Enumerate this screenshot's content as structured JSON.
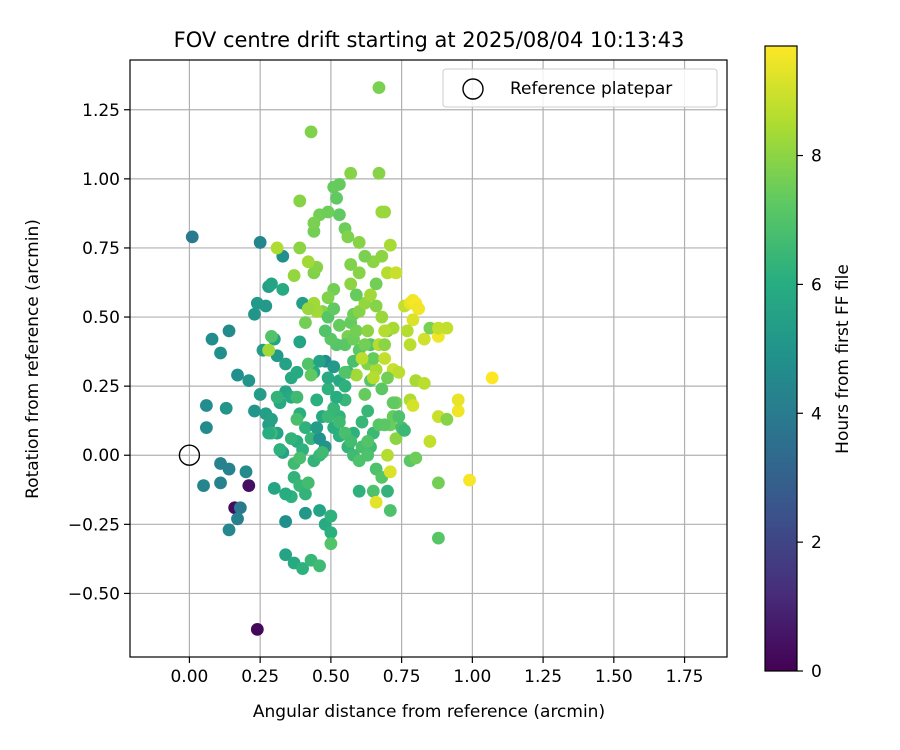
{
  "chart_data": {
    "type": "scatter",
    "title": "FOV centre drift starting at 2025/08/04 10:13:43",
    "xlabel": "Angular distance from reference (arcmin)",
    "ylabel": "Rotation from reference (arcmin)",
    "xlim": [
      -0.21,
      1.9
    ],
    "ylim": [
      -0.73,
      1.43
    ],
    "xticks": [
      "0.00",
      "0.25",
      "0.50",
      "0.75",
      "1.00",
      "1.25",
      "1.50",
      "1.75"
    ],
    "yticks": [
      "−0.50",
      "−0.25",
      "0.00",
      "0.25",
      "0.50",
      "0.75",
      "1.00",
      "1.25"
    ],
    "grid": true,
    "legend": {
      "position": "top-right",
      "entries": [
        {
          "label": "Reference platepar",
          "marker": "open-circle"
        }
      ]
    },
    "reference_point": {
      "x": 0.0,
      "y": 0.0
    },
    "colorbar": {
      "label": "Hours from first FF file",
      "colormap": "viridis",
      "min": 0,
      "max": 9.7,
      "ticks": [
        "0",
        "2",
        "4",
        "6",
        "8"
      ]
    },
    "point_columns": [
      "x",
      "y",
      "hours"
    ],
    "points": [
      [
        0.24,
        -0.63,
        0.2
      ],
      [
        0.16,
        -0.19,
        0.3
      ],
      [
        0.21,
        -0.11,
        0.4
      ],
      [
        0.18,
        -0.19,
        3.9
      ],
      [
        0.17,
        -0.23,
        4.2
      ],
      [
        0.14,
        -0.27,
        4.5
      ],
      [
        0.01,
        0.79,
        3.9
      ],
      [
        0.25,
        0.77,
        4.4
      ],
      [
        0.14,
        0.45,
        4.6
      ],
      [
        0.08,
        0.42,
        4.7
      ],
      [
        0.11,
        0.37,
        4.8
      ],
      [
        0.06,
        0.18,
        4.7
      ],
      [
        0.13,
        0.17,
        5.0
      ],
      [
        0.06,
        0.1,
        4.6
      ],
      [
        0.11,
        -0.03,
        4.3
      ],
      [
        0.14,
        -0.05,
        4.3
      ],
      [
        0.05,
        -0.11,
        4.4
      ],
      [
        0.11,
        -0.1,
        4.3
      ],
      [
        0.2,
        -0.06,
        4.6
      ],
      [
        0.17,
        0.29,
        4.8
      ],
      [
        0.21,
        0.27,
        5.0
      ],
      [
        0.23,
        0.51,
        5.0
      ],
      [
        0.24,
        0.55,
        5.2
      ],
      [
        0.27,
        0.54,
        5.2
      ],
      [
        0.28,
        0.61,
        5.4
      ],
      [
        0.29,
        0.62,
        5.6
      ],
      [
        0.33,
        0.6,
        5.9
      ],
      [
        0.33,
        0.72,
        4.8
      ],
      [
        0.3,
        0.42,
        5.6
      ],
      [
        0.26,
        0.38,
        5.3
      ],
      [
        0.31,
        0.36,
        5.2
      ],
      [
        0.34,
        0.33,
        5.5
      ],
      [
        0.36,
        0.28,
        5.8
      ],
      [
        0.38,
        0.3,
        5.9
      ],
      [
        0.39,
        0.41,
        5.6
      ],
      [
        0.4,
        0.55,
        5.4
      ],
      [
        0.23,
        0.16,
        5.0
      ],
      [
        0.25,
        0.22,
        5.3
      ],
      [
        0.27,
        0.15,
        5.4
      ],
      [
        0.28,
        0.11,
        5.4
      ],
      [
        0.29,
        0.13,
        5.5
      ],
      [
        0.31,
        0.08,
        5.6
      ],
      [
        0.32,
        0.19,
        5.8
      ],
      [
        0.34,
        0.23,
        5.7
      ],
      [
        0.36,
        0.21,
        5.9
      ],
      [
        0.39,
        0.15,
        6.1
      ],
      [
        0.41,
        0.1,
        6.2
      ],
      [
        0.43,
        0.06,
        6.4
      ],
      [
        0.33,
        0.01,
        5.5
      ],
      [
        0.32,
        0.02,
        5.7
      ],
      [
        0.38,
        0.05,
        6.0
      ],
      [
        0.4,
        0.02,
        6.2
      ],
      [
        0.44,
        -0.02,
        6.3
      ],
      [
        0.46,
        0.0,
        6.4
      ],
      [
        0.37,
        -0.08,
        6.3
      ],
      [
        0.39,
        -0.11,
        6.4
      ],
      [
        0.41,
        -0.14,
        6.3
      ],
      [
        0.36,
        -0.15,
        6.2
      ],
      [
        0.34,
        -0.14,
        6.0
      ],
      [
        0.3,
        -0.12,
        5.7
      ],
      [
        0.34,
        -0.24,
        4.8
      ],
      [
        0.41,
        -0.21,
        5.1
      ],
      [
        0.46,
        -0.2,
        5.6
      ],
      [
        0.48,
        -0.25,
        5.9
      ],
      [
        0.5,
        -0.22,
        6.2
      ],
      [
        0.5,
        -0.28,
        6.1
      ],
      [
        0.34,
        -0.36,
        5.6
      ],
      [
        0.37,
        -0.39,
        5.9
      ],
      [
        0.4,
        -0.41,
        6.2
      ],
      [
        0.43,
        -0.38,
        6.4
      ],
      [
        0.46,
        -0.4,
        6.6
      ],
      [
        0.5,
        -0.32,
        7.0
      ],
      [
        0.46,
        0.06,
        4.9
      ],
      [
        0.48,
        0.03,
        5.0
      ],
      [
        0.45,
        0.1,
        5.3
      ],
      [
        0.47,
        0.14,
        5.8
      ],
      [
        0.45,
        0.2,
        6.1
      ],
      [
        0.49,
        0.24,
        6.2
      ],
      [
        0.44,
        0.3,
        5.8
      ],
      [
        0.48,
        0.34,
        4.7
      ],
      [
        0.51,
        0.32,
        5.2
      ],
      [
        0.53,
        0.27,
        5.8
      ],
      [
        0.55,
        0.25,
        6.2
      ],
      [
        0.55,
        0.2,
        6.4
      ],
      [
        0.53,
        0.14,
        6.3
      ],
      [
        0.51,
        0.1,
        6.0
      ],
      [
        0.53,
        0.07,
        6.1
      ],
      [
        0.56,
        0.03,
        6.3
      ],
      [
        0.58,
        0.0,
        6.6
      ],
      [
        0.6,
        -0.02,
        6.9
      ],
      [
        0.58,
        0.08,
        6.2
      ],
      [
        0.61,
        0.12,
        6.4
      ],
      [
        0.63,
        0.16,
        6.4
      ],
      [
        0.65,
        0.08,
        6.5
      ],
      [
        0.64,
        0.03,
        6.6
      ],
      [
        0.66,
        -0.05,
        6.9
      ],
      [
        0.68,
        -0.08,
        7.1
      ],
      [
        0.7,
        -0.13,
        6.3
      ],
      [
        0.65,
        -0.13,
        6.9
      ],
      [
        0.6,
        -0.13,
        6.2
      ],
      [
        0.71,
        -0.2,
        6.9
      ],
      [
        0.66,
        -0.17,
        9.3
      ],
      [
        0.56,
        0.3,
        6.5
      ],
      [
        0.58,
        0.34,
        6.8
      ],
      [
        0.6,
        0.38,
        7.2
      ],
      [
        0.63,
        0.33,
        7.8
      ],
      [
        0.66,
        0.31,
        8.4
      ],
      [
        0.65,
        0.35,
        7.4
      ],
      [
        0.64,
        0.4,
        7.0
      ],
      [
        0.67,
        0.4,
        8.6
      ],
      [
        0.69,
        0.35,
        8.8
      ],
      [
        0.72,
        0.31,
        8.9
      ],
      [
        0.74,
        0.3,
        8.7
      ],
      [
        0.7,
        0.45,
        7.8
      ],
      [
        0.72,
        0.46,
        8.4
      ],
      [
        0.76,
        0.54,
        8.8
      ],
      [
        0.78,
        0.55,
        9.4
      ],
      [
        0.79,
        0.56,
        9.5
      ],
      [
        0.8,
        0.55,
        9.6
      ],
      [
        0.81,
        0.53,
        9.5
      ],
      [
        0.79,
        0.49,
        9.2
      ],
      [
        0.77,
        0.45,
        8.6
      ],
      [
        0.78,
        0.4,
        8.7
      ],
      [
        0.83,
        0.42,
        9.0
      ],
      [
        0.85,
        0.46,
        7.7
      ],
      [
        0.88,
        0.43,
        9.5
      ],
      [
        0.88,
        0.46,
        8.8
      ],
      [
        0.91,
        0.46,
        8.8
      ],
      [
        0.8,
        0.27,
        8.4
      ],
      [
        0.83,
        0.26,
        8.7
      ],
      [
        0.78,
        0.2,
        8.5
      ],
      [
        0.79,
        0.18,
        9.1
      ],
      [
        0.85,
        0.05,
        8.8
      ],
      [
        0.88,
        0.14,
        8.9
      ],
      [
        0.91,
        0.13,
        7.9
      ],
      [
        0.95,
        0.16,
        9.5
      ],
      [
        0.95,
        0.2,
        9.4
      ],
      [
        1.07,
        0.28,
        9.7
      ],
      [
        0.99,
        -0.09,
        9.6
      ],
      [
        0.88,
        -0.1,
        7.6
      ],
      [
        0.88,
        -0.3,
        7.1
      ],
      [
        0.78,
        -0.02,
        7.2
      ],
      [
        0.8,
        -0.01,
        7.5
      ],
      [
        0.71,
        -0.06,
        9.2
      ],
      [
        0.7,
        0.0,
        8.6
      ],
      [
        0.73,
        0.06,
        8.0
      ],
      [
        0.71,
        0.11,
        7.5
      ],
      [
        0.72,
        0.14,
        7.4
      ],
      [
        0.75,
        0.1,
        6.8
      ],
      [
        0.73,
        0.19,
        7.6
      ],
      [
        0.76,
        0.09,
        6.5
      ],
      [
        0.74,
        0.14,
        6.9
      ],
      [
        0.68,
        0.24,
        7.2
      ],
      [
        0.64,
        0.27,
        7.1
      ],
      [
        0.7,
        0.28,
        7.6
      ],
      [
        0.62,
        0.22,
        7.4
      ],
      [
        0.59,
        0.29,
        8.3
      ],
      [
        0.56,
        0.43,
        7.7
      ],
      [
        0.55,
        0.4,
        7.2
      ],
      [
        0.57,
        0.48,
        7.4
      ],
      [
        0.58,
        0.51,
        7.5
      ],
      [
        0.6,
        0.52,
        7.9
      ],
      [
        0.62,
        0.55,
        8.1
      ],
      [
        0.64,
        0.58,
        8.3
      ],
      [
        0.66,
        0.54,
        7.9
      ],
      [
        0.68,
        0.5,
        8.2
      ],
      [
        0.69,
        0.45,
        8.6
      ],
      [
        0.66,
        0.62,
        7.6
      ],
      [
        0.65,
        0.7,
        8.0
      ],
      [
        0.68,
        0.72,
        8.0
      ],
      [
        0.7,
        0.66,
        8.6
      ],
      [
        0.73,
        0.66,
        8.9
      ],
      [
        0.71,
        0.76,
        8.4
      ],
      [
        0.68,
        0.88,
        8.2
      ],
      [
        0.69,
        0.88,
        8.2
      ],
      [
        0.67,
        1.02,
        7.9
      ],
      [
        0.57,
        1.02,
        7.9
      ],
      [
        0.53,
        0.98,
        7.4
      ],
      [
        0.51,
        0.97,
        7.4
      ],
      [
        0.52,
        0.93,
        7.3
      ],
      [
        0.53,
        0.87,
        7.3
      ],
      [
        0.55,
        0.82,
        7.5
      ],
      [
        0.56,
        0.79,
        7.8
      ],
      [
        0.6,
        0.77,
        7.9
      ],
      [
        0.62,
        0.72,
        7.7
      ],
      [
        0.57,
        0.69,
        7.8
      ],
      [
        0.6,
        0.66,
        7.9
      ],
      [
        0.57,
        0.62,
        8.0
      ],
      [
        0.51,
        0.6,
        7.6
      ],
      [
        0.49,
        0.57,
        7.8
      ],
      [
        0.47,
        0.52,
        7.9
      ],
      [
        0.45,
        0.52,
        8.3
      ],
      [
        0.44,
        0.55,
        8.3
      ],
      [
        0.42,
        0.53,
        8.2
      ],
      [
        0.41,
        0.48,
        7.6
      ],
      [
        0.44,
        0.66,
        7.8
      ],
      [
        0.45,
        0.68,
        7.9
      ],
      [
        0.42,
        0.7,
        8.3
      ],
      [
        0.39,
        0.75,
        8.0
      ],
      [
        0.37,
        0.65,
        8.1
      ],
      [
        0.44,
        0.81,
        7.6
      ],
      [
        0.46,
        0.87,
        7.6
      ],
      [
        0.49,
        0.88,
        7.5
      ],
      [
        0.39,
        0.92,
        7.9
      ],
      [
        0.43,
        1.17,
        7.8
      ],
      [
        0.67,
        1.33,
        7.7
      ],
      [
        0.31,
        0.75,
        8.5
      ],
      [
        0.44,
        0.84,
        7.7
      ],
      [
        0.28,
        0.38,
        8.3
      ],
      [
        0.29,
        0.43,
        7.0
      ],
      [
        0.42,
        0.33,
        7.0
      ],
      [
        0.43,
        0.29,
        7.3
      ],
      [
        0.38,
        0.21,
        6.6
      ],
      [
        0.38,
        0.13,
        6.8
      ],
      [
        0.31,
        0.21,
        6.3
      ],
      [
        0.29,
        0.08,
        6.5
      ],
      [
        0.28,
        0.08,
        6.0
      ],
      [
        0.32,
        0.02,
        6.2
      ],
      [
        0.36,
        0.06,
        6.3
      ],
      [
        0.37,
        -0.03,
        6.6
      ],
      [
        0.42,
        -0.1,
        6.7
      ],
      [
        0.39,
        -0.01,
        6.8
      ],
      [
        0.47,
        0.01,
        6.6
      ],
      [
        0.49,
        0.14,
        6.5
      ],
      [
        0.51,
        0.17,
        6.4
      ],
      [
        0.53,
        0.12,
        6.6
      ],
      [
        0.55,
        0.08,
        6.8
      ],
      [
        0.57,
        0.05,
        6.7
      ],
      [
        0.61,
        0.03,
        6.8
      ],
      [
        0.63,
        0.0,
        6.9
      ],
      [
        0.63,
        0.05,
        7.0
      ],
      [
        0.67,
        0.11,
        7.1
      ],
      [
        0.69,
        0.11,
        7.2
      ],
      [
        0.72,
        0.19,
        7.3
      ],
      [
        0.55,
        0.3,
        7.0
      ],
      [
        0.52,
        0.4,
        7.1
      ],
      [
        0.5,
        0.42,
        7.2
      ],
      [
        0.48,
        0.45,
        7.0
      ],
      [
        0.49,
        0.5,
        7.1
      ],
      [
        0.51,
        0.53,
        7.3
      ],
      [
        0.53,
        0.47,
        7.4
      ],
      [
        0.59,
        0.58,
        7.4
      ],
      [
        0.58,
        0.42,
        7.5
      ],
      [
        0.59,
        0.45,
        7.6
      ],
      [
        0.62,
        0.4,
        7.6
      ],
      [
        0.63,
        0.45,
        8.0
      ],
      [
        0.69,
        0.4,
        8.0
      ],
      [
        0.61,
        0.35,
        8.7
      ],
      [
        0.65,
        0.28,
        8.6
      ],
      [
        0.52,
        0.21,
        6.0
      ],
      [
        0.46,
        0.34,
        5.6
      ],
      [
        0.49,
        0.28,
        5.9
      ]
    ]
  }
}
